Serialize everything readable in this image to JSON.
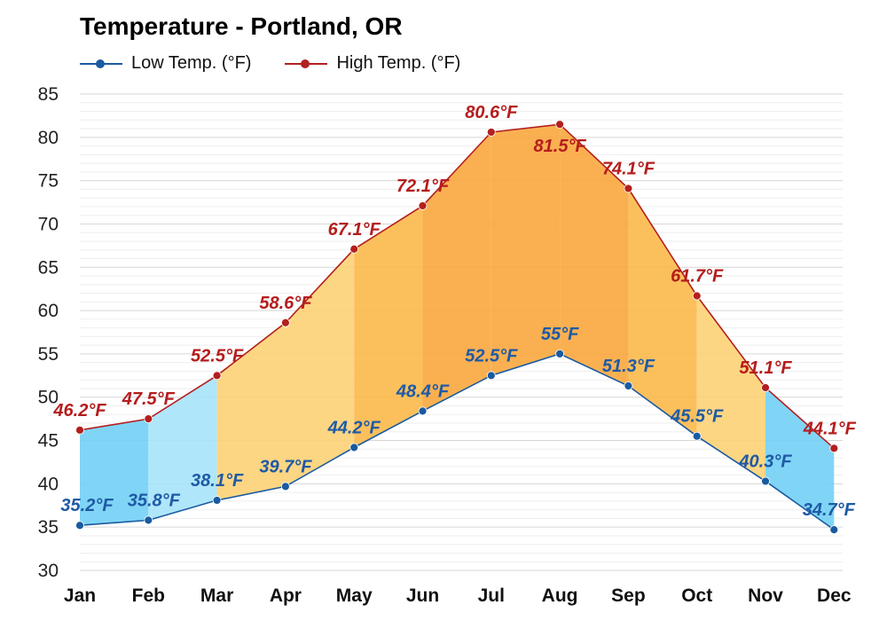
{
  "title": "Temperature - Portland, OR",
  "legend": {
    "low": "Low Temp. (°F)",
    "high": "High Temp. (°F)"
  },
  "colors": {
    "low_line": "#1a5aa0",
    "high_line": "#b31f1f",
    "cold_fill": "#7fd3f5",
    "warm_fill": "#fbbf45",
    "hot_fill": "#f9a23a",
    "grid": "#dddddd"
  },
  "chart_data": {
    "type": "line",
    "title": "Temperature - Portland, OR",
    "categories": [
      "Jan",
      "Feb",
      "Mar",
      "Apr",
      "May",
      "Jun",
      "Jul",
      "Aug",
      "Sep",
      "Oct",
      "Nov",
      "Dec"
    ],
    "series": [
      {
        "name": "Low Temp. (°F)",
        "values": [
          35.2,
          35.8,
          38.1,
          39.7,
          44.2,
          48.4,
          52.5,
          55,
          51.3,
          45.5,
          40.3,
          34.7
        ],
        "labels": [
          "35.2°F",
          "35.8°F",
          "38.1°F",
          "39.7°F",
          "44.2°F",
          "48.4°F",
          "52.5°F",
          "55°F",
          "51.3°F",
          "45.5°F",
          "40.3°F",
          "34.7°F"
        ]
      },
      {
        "name": "High Temp. (°F)",
        "values": [
          46.2,
          47.5,
          52.5,
          58.6,
          67.1,
          72.1,
          80.6,
          81.5,
          74.1,
          61.7,
          51.1,
          44.1
        ],
        "labels": [
          "46.2°F",
          "47.5°F",
          "52.5°F",
          "58.6°F",
          "67.1°F",
          "72.1°F",
          "80.6°F",
          "81.5°F",
          "74.1°F",
          "61.7°F",
          "51.1°F",
          "44.1°F"
        ]
      }
    ],
    "ylim": [
      30,
      85
    ],
    "yticks": [
      30,
      35,
      40,
      45,
      50,
      55,
      60,
      65,
      70,
      75,
      80,
      85
    ],
    "grid": true,
    "legend_position": "top-left"
  }
}
